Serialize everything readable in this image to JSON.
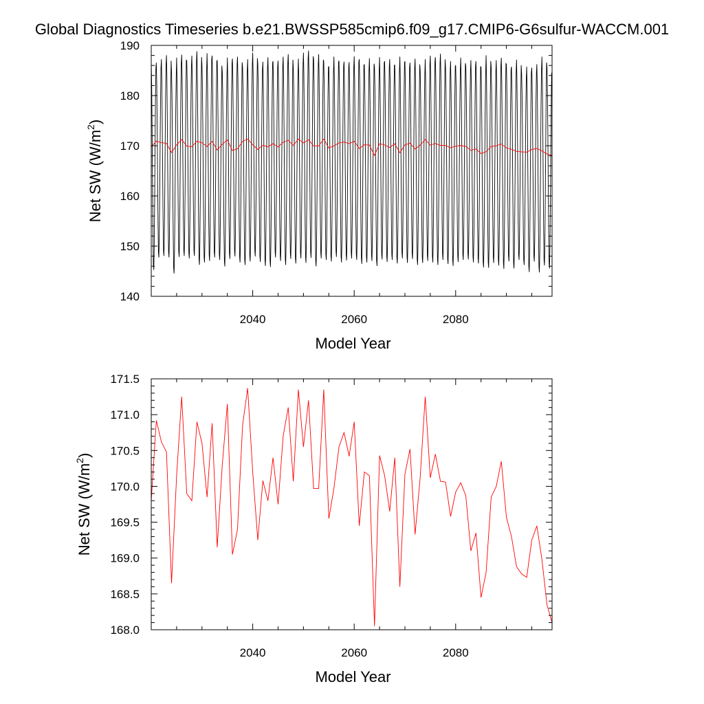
{
  "figure": {
    "title": "Global Diagnostics Timeseries b.e21.BWSSP585cmip6.f09_g17.CMIP6-G6sulfur-WACCM.001"
  },
  "chart_data": [
    {
      "type": "line",
      "title": "Global Diagnostics Timeseries b.e21.BWSSP585cmip6.f09_g17.CMIP6-G6sulfur-WACCM.001",
      "xlabel": "Model Year",
      "ylabel": "Net SW (W/m",
      "ylabel_sup": "2",
      "ylabel_close": ")",
      "xlim": [
        2020,
        2099
      ],
      "ylim": [
        140,
        190
      ],
      "x_ticks": [
        2040,
        2060,
        2080
      ],
      "x_tick_labels": [
        "2040",
        "2060",
        "2080"
      ],
      "y_ticks": [
        140,
        150,
        160,
        170,
        180,
        190
      ],
      "y_tick_labels": [
        "140",
        "150",
        "160",
        "170",
        "180",
        "190"
      ],
      "grid": false,
      "series": [
        {
          "color": "#000000",
          "x_start": 2020,
          "x_step": 0.0833333,
          "annual_peaks": [
            187.0,
            186.8,
            187.5,
            188.3,
            185.0,
            187.8,
            188.4,
            187.2,
            188.2,
            189.1,
            186.3,
            188.7,
            188.2,
            187.3,
            185.1,
            187.8,
            187.6,
            188.0,
            186.0,
            187.5,
            188.8,
            186.6,
            187.0,
            187.9,
            187.1,
            187.2,
            188.0,
            188.5,
            185.8,
            187.6,
            188.8,
            189.2,
            187.5,
            188.5,
            187.0,
            186.0,
            188.0,
            187.2,
            187.0,
            186.9,
            188.1,
            187.5,
            186.4,
            187.7,
            186.0,
            187.9,
            187.1,
            187.5,
            186.2,
            188.0,
            187.0,
            186.8,
            187.6,
            185.4,
            187.5,
            188.2,
            187.9,
            188.6,
            186.0,
            187.1,
            186.3,
            187.8,
            186.2,
            187.3,
            187.1,
            186.0,
            188.3,
            186.0,
            187.3,
            187.8,
            186.5,
            186.0,
            187.4,
            184.7,
            186.0,
            185.8,
            186.5,
            188.0,
            185.9
          ],
          "annual_troughs": [
            145.0,
            147.5,
            147.8,
            147.5,
            144.3,
            147.6,
            147.8,
            147.3,
            147.8,
            146.0,
            146.5,
            146.8,
            147.5,
            147.0,
            145.7,
            147.2,
            147.7,
            146.5,
            146.0,
            146.7,
            147.7,
            146.6,
            145.8,
            145.6,
            147.5,
            146.8,
            146.0,
            147.2,
            146.3,
            147.3,
            146.4,
            147.4,
            145.7,
            147.3,
            147.0,
            146.7,
            147.6,
            146.5,
            146.9,
            147.3,
            147.0,
            146.2,
            146.5,
            146.8,
            145.8,
            147.1,
            146.6,
            147.0,
            146.3,
            147.3,
            146.4,
            147.2,
            146.0,
            146.4,
            146.8,
            146.5,
            146.0,
            147.0,
            146.2,
            145.8,
            146.6,
            147.0,
            147.1,
            146.5,
            146.3,
            145.5,
            145.4,
            146.4,
            145.9,
            145.2,
            146.7,
            145.3,
            147.0,
            146.0,
            144.6,
            146.7,
            144.5,
            145.9,
            145.3
          ]
        },
        {
          "color": "#ff0000",
          "x": [
            2020,
            2021,
            2022,
            2023,
            2024,
            2025,
            2026,
            2027,
            2028,
            2029,
            2030,
            2031,
            2032,
            2033,
            2034,
            2035,
            2036,
            2037,
            2038,
            2039,
            2040,
            2041,
            2042,
            2043,
            2044,
            2045,
            2046,
            2047,
            2048,
            2049,
            2050,
            2051,
            2052,
            2053,
            2054,
            2055,
            2056,
            2057,
            2058,
            2059,
            2060,
            2061,
            2062,
            2063,
            2064,
            2065,
            2066,
            2067,
            2068,
            2069,
            2070,
            2071,
            2072,
            2073,
            2074,
            2075,
            2076,
            2077,
            2078,
            2079,
            2080,
            2081,
            2082,
            2083,
            2084,
            2085,
            2086,
            2087,
            2088,
            2089,
            2090,
            2091,
            2092,
            2093,
            2094,
            2095,
            2096,
            2097,
            2098,
            2099
          ],
          "values": [
            169.8,
            170.92,
            170.62,
            170.48,
            168.65,
            170.15,
            171.25,
            169.9,
            169.8,
            170.9,
            170.6,
            169.85,
            170.88,
            169.15,
            170.3,
            171.15,
            169.05,
            169.4,
            170.85,
            171.37,
            170.2,
            169.25,
            170.08,
            169.8,
            170.4,
            169.75,
            170.7,
            171.1,
            170.07,
            171.35,
            170.55,
            171.2,
            169.97,
            169.97,
            171.35,
            169.55,
            169.97,
            170.55,
            170.75,
            170.42,
            170.9,
            169.45,
            170.2,
            170.15,
            168.05,
            170.43,
            170.15,
            169.65,
            170.4,
            168.6,
            170.17,
            170.52,
            169.33,
            170.12,
            171.25,
            170.12,
            170.45,
            170.07,
            170.06,
            169.58,
            169.92,
            170.05,
            169.87,
            169.1,
            169.35,
            168.45,
            168.8,
            169.85,
            170.0,
            170.35,
            169.57,
            169.3,
            168.88,
            168.78,
            168.73,
            169.25,
            169.45,
            168.98,
            168.35,
            168.1
          ]
        }
      ]
    },
    {
      "type": "line",
      "xlabel": "Model Year",
      "ylabel": "Net SW (W/m",
      "ylabel_sup": "2",
      "ylabel_close": ")",
      "xlim": [
        2020,
        2099
      ],
      "ylim": [
        168.0,
        171.5
      ],
      "x_ticks": [
        2040,
        2060,
        2080
      ],
      "x_tick_labels": [
        "2040",
        "2060",
        "2080"
      ],
      "y_ticks": [
        168.0,
        168.5,
        169.0,
        169.5,
        170.0,
        170.5,
        171.0,
        171.5
      ],
      "y_tick_labels": [
        "168.0",
        "168.5",
        "169.0",
        "169.5",
        "170.0",
        "170.5",
        "171.0",
        "171.5"
      ],
      "grid": false,
      "series": [
        {
          "color": "#ff0000",
          "x": [
            2020,
            2021,
            2022,
            2023,
            2024,
            2025,
            2026,
            2027,
            2028,
            2029,
            2030,
            2031,
            2032,
            2033,
            2034,
            2035,
            2036,
            2037,
            2038,
            2039,
            2040,
            2041,
            2042,
            2043,
            2044,
            2045,
            2046,
            2047,
            2048,
            2049,
            2050,
            2051,
            2052,
            2053,
            2054,
            2055,
            2056,
            2057,
            2058,
            2059,
            2060,
            2061,
            2062,
            2063,
            2064,
            2065,
            2066,
            2067,
            2068,
            2069,
            2070,
            2071,
            2072,
            2073,
            2074,
            2075,
            2076,
            2077,
            2078,
            2079,
            2080,
            2081,
            2082,
            2083,
            2084,
            2085,
            2086,
            2087,
            2088,
            2089,
            2090,
            2091,
            2092,
            2093,
            2094,
            2095,
            2096,
            2097,
            2098,
            2099
          ],
          "values": [
            169.8,
            170.92,
            170.62,
            170.48,
            168.65,
            170.15,
            171.25,
            169.9,
            169.8,
            170.9,
            170.6,
            169.85,
            170.88,
            169.15,
            170.3,
            171.15,
            169.05,
            169.4,
            170.85,
            171.37,
            170.2,
            169.25,
            170.08,
            169.8,
            170.4,
            169.75,
            170.7,
            171.1,
            170.07,
            171.35,
            170.55,
            171.2,
            169.97,
            169.97,
            171.35,
            169.55,
            169.97,
            170.55,
            170.75,
            170.42,
            170.9,
            169.45,
            170.2,
            170.15,
            168.05,
            170.43,
            170.15,
            169.65,
            170.4,
            168.6,
            170.17,
            170.52,
            169.33,
            170.12,
            171.25,
            170.12,
            170.45,
            170.07,
            170.06,
            169.58,
            169.92,
            170.05,
            169.87,
            169.1,
            169.35,
            168.45,
            168.8,
            169.85,
            170.0,
            170.35,
            169.57,
            169.3,
            168.88,
            168.78,
            168.73,
            169.25,
            169.45,
            168.98,
            168.35,
            168.1
          ]
        }
      ]
    }
  ]
}
